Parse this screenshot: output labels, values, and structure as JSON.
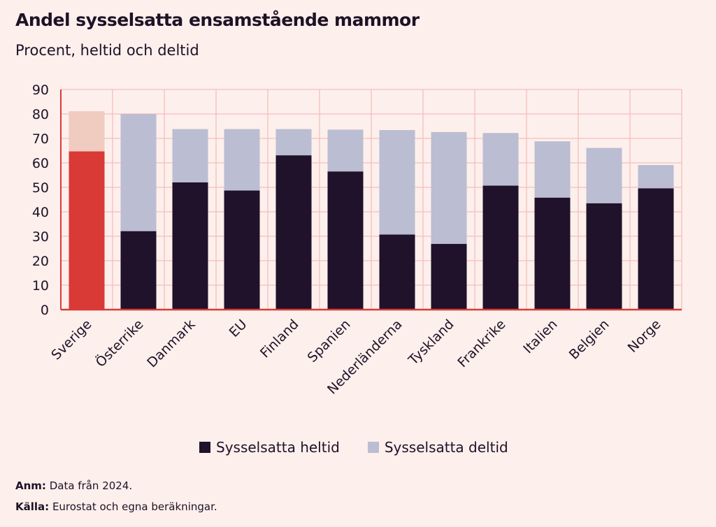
{
  "chart_data": {
    "type": "bar",
    "stacked": true,
    "title": "Andel sysselsatta ensamstående mammor",
    "subtitle": "Procent, heltid och deltid",
    "ylim": [
      0,
      90
    ],
    "yticks": [
      0,
      10,
      20,
      30,
      40,
      50,
      60,
      70,
      80,
      90
    ],
    "grid": true,
    "legend_placement": "bottom",
    "categories": [
      "Sverige",
      "Österrike",
      "Danmark",
      "EU",
      "Finland",
      "Spanien",
      "Nederländerna",
      "Tyskland",
      "Frankrike",
      "Italien",
      "Belgien",
      "Norge"
    ],
    "series": [
      {
        "name": "Sysselsatta heltid",
        "color": "#20122a",
        "highlight_color": "#d93a36",
        "values": [
          64.7,
          32.1,
          52.0,
          48.7,
          63.1,
          56.5,
          30.7,
          26.9,
          50.7,
          45.8,
          43.5,
          49.6
        ]
      },
      {
        "name": "Sysselsatta deltid",
        "color": "#bbbdd2",
        "highlight_color": "#f0cbbf",
        "values": [
          16.4,
          47.9,
          21.8,
          25.1,
          10.7,
          17.1,
          42.7,
          45.7,
          21.5,
          23.0,
          22.6,
          9.5
        ]
      }
    ],
    "highlight_category": "Sverige"
  },
  "notes": {
    "anm_label": "Anm:",
    "anm_text": "Data från 2024.",
    "kalla_label": "Källa:",
    "kalla_text": "Eurostat och egna beräkningar."
  },
  "colors": {
    "background": "#fdefec",
    "grid": "#f4bfba",
    "axis": "#d93a36"
  }
}
